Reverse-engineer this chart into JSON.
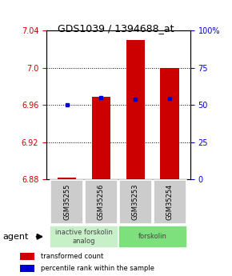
{
  "title": "GDS1039 / 1394688_at",
  "samples": [
    "GSM35255",
    "GSM35256",
    "GSM35253",
    "GSM35254"
  ],
  "red_values": [
    6.882,
    6.969,
    7.03,
    7.0
  ],
  "blue_values": [
    6.96,
    6.968,
    6.966,
    6.967
  ],
  "ymin": 6.88,
  "ymax": 7.04,
  "yticks_left": [
    6.88,
    6.92,
    6.96,
    7.0,
    7.04
  ],
  "yticks_right": [
    0,
    25,
    50,
    75,
    100
  ],
  "yticks_right_labels": [
    "0",
    "25",
    "50",
    "75",
    "100%"
  ],
  "groups": [
    {
      "label": "inactive forskolin\nanalog",
      "samples": [
        0,
        1
      ],
      "color": "#c8f0c8"
    },
    {
      "label": "forskolin",
      "samples": [
        2,
        3
      ],
      "color": "#7de07d"
    }
  ],
  "bar_color": "#cc0000",
  "blue_color": "#0000cc",
  "bar_width": 0.55,
  "agent_label": "agent",
  "legend_red": "transformed count",
  "legend_blue": "percentile rank within the sample",
  "background_color": "#ffffff",
  "plot_bg": "#ffffff",
  "tick_color_left": "#cc0000",
  "tick_color_right": "#0000cc",
  "sample_box_color": "#cccccc",
  "title_fontsize": 9,
  "label_fontsize": 6,
  "tick_fontsize": 7
}
